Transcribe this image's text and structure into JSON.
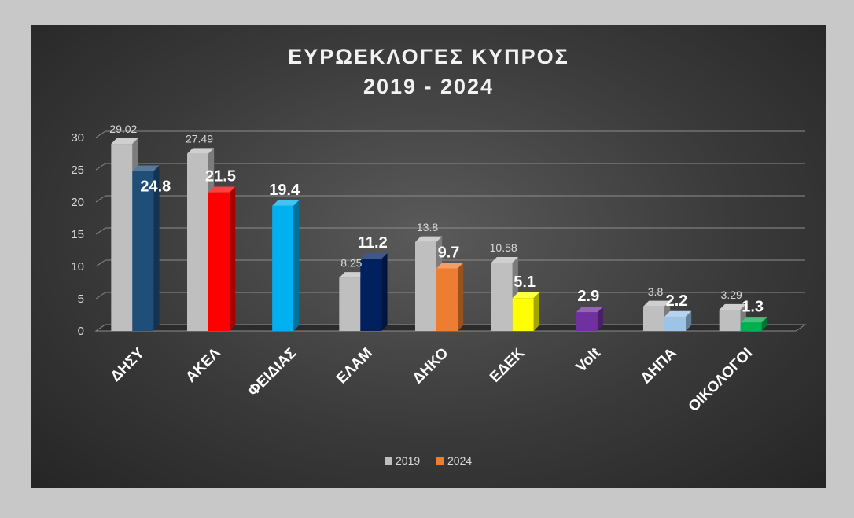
{
  "chart_data": {
    "type": "bar",
    "title": "ΕΥΡΩΕΚΛΟΓΕΣ ΚΥΠΡΟΣ",
    "subtitle": "2019 - 2024",
    "categories": [
      "ΔΗΣΥ",
      "ΑΚΕΛ",
      "ΦΕΙΔΙΑΣ",
      "ΕΛΑΜ",
      "ΔΗΚΟ",
      "ΕΔΕΚ",
      "Volt",
      "ΔΗΠΑ",
      "ΟΙΚΟΛΟΓΟΙ"
    ],
    "series": [
      {
        "name": "2019",
        "values": [
          29.02,
          27.49,
          null,
          8.25,
          13.8,
          10.58,
          null,
          3.8,
          3.29
        ]
      },
      {
        "name": "2024",
        "values": [
          24.8,
          21.5,
          19.4,
          11.2,
          9.7,
          5.1,
          2.9,
          2.2,
          1.3
        ]
      }
    ],
    "data_labels": {
      "2019": [
        "29.02",
        "27.49",
        "",
        "8.25",
        "13.8",
        "10.58",
        "",
        "3.8",
        "3.29"
      ],
      "2024": [
        "24.8",
        "21.5",
        "19.4",
        "11.2",
        "9.7",
        "5.1",
        "2.9",
        "2.2",
        "1.3"
      ]
    },
    "colors": {
      "2019": "#bfbfbf",
      "2024": [
        "#1f4e79",
        "#ff0000",
        "#00b0f0",
        "#002060",
        "#ed7d31",
        "#ffff00",
        "#7030a0",
        "#9dc3e6",
        "#00b050"
      ]
    },
    "legend": [
      {
        "label": "2019",
        "color": "#bfbfbf"
      },
      {
        "label": "2024",
        "color": "#ed7d31"
      }
    ],
    "legend_position": "bottom",
    "yticks": [
      "0",
      "5",
      "10",
      "15",
      "20",
      "25",
      "30"
    ],
    "ylim": [
      0,
      30
    ],
    "grid": true,
    "xlabel": "",
    "ylabel": ""
  }
}
